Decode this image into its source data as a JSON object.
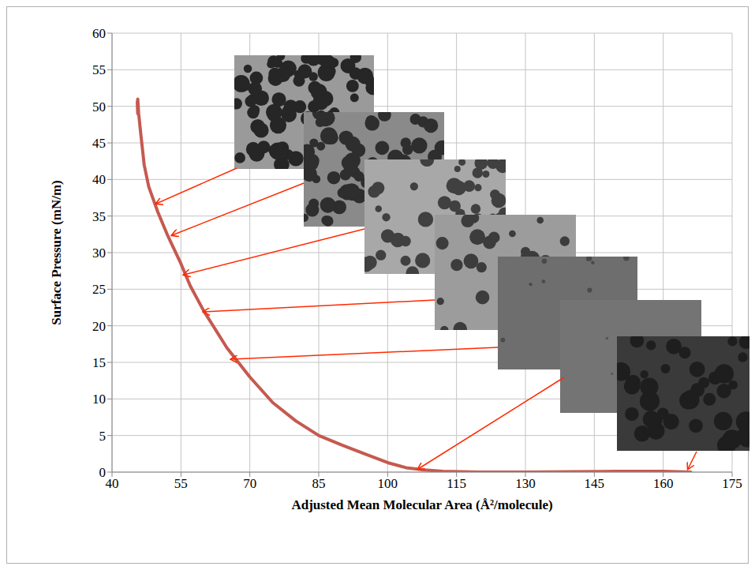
{
  "chart_data": {
    "type": "line",
    "x_label": "Adjusted Mean Molecular Area (Å²/molecule)",
    "y_label": "Surface Pressure (mN/m)",
    "x": [
      166,
      160,
      150,
      140,
      130,
      120,
      112,
      108,
      104,
      100,
      95,
      90,
      85,
      80,
      75,
      70,
      65,
      60,
      57,
      55,
      52,
      50,
      48,
      47,
      46.3,
      45.8,
      45.6,
      45.5,
      45.6
    ],
    "values": [
      0,
      0.1,
      0.1,
      0.05,
      0,
      0,
      0.1,
      0.3,
      0.6,
      1.3,
      2.5,
      3.7,
      5,
      7,
      9.5,
      13,
      17,
      22,
      25.5,
      28.5,
      32.5,
      35.5,
      39,
      42,
      46,
      49,
      51,
      50.5,
      49
    ],
    "color": "#c55a50",
    "xlim": [
      40,
      175
    ],
    "xticks": [
      40,
      55,
      70,
      85,
      100,
      115,
      130,
      145,
      160,
      175
    ],
    "ylim": [
      0,
      60
    ],
    "yticks": [
      0,
      5,
      10,
      15,
      20,
      25,
      30,
      35,
      40,
      45,
      50,
      55,
      60
    ],
    "grid": true
  }
}
